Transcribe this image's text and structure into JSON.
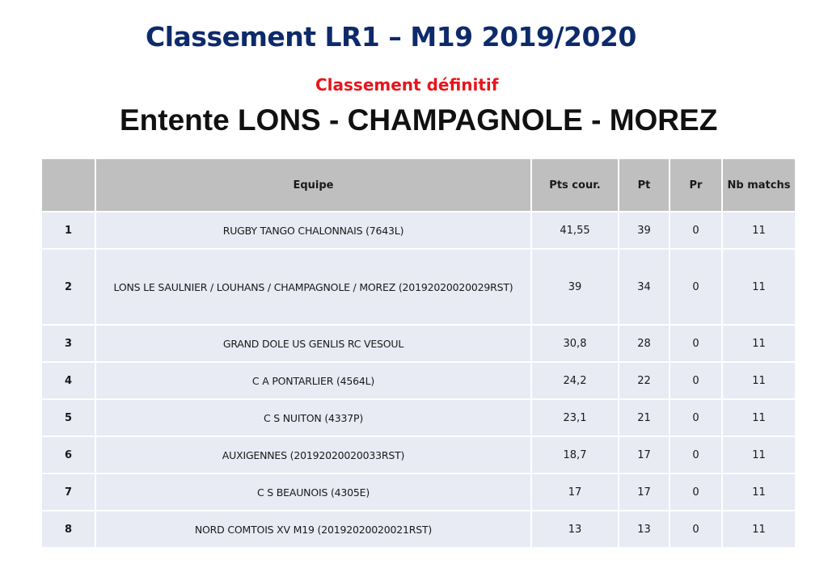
{
  "header": {
    "title": "Classement LR1 – M19 2019/2020",
    "subtitle_status": "Classement définitif",
    "subtitle_team": "Entente LONS - CHAMPAGNOLE - MOREZ"
  },
  "table": {
    "columns": [
      "",
      "Equipe",
      "Pts cour.",
      "Pt",
      "Pr",
      "Nb matchs"
    ],
    "rows": [
      {
        "rank": "1",
        "team": "RUGBY TANGO CHALONNAIS (7643L)",
        "pts_cour": "41,55",
        "pt": "39",
        "pr": "0",
        "nb_matchs": "11"
      },
      {
        "rank": "2",
        "team": "LONS LE SAULNIER / LOUHANS / CHAMPAGNOLE / MOREZ (20192020020029RST)",
        "pts_cour": "39",
        "pt": "34",
        "pr": "0",
        "nb_matchs": "11"
      },
      {
        "rank": "3",
        "team": "GRAND DOLE US GENLIS RC VESOUL",
        "pts_cour": "30,8",
        "pt": "28",
        "pr": "0",
        "nb_matchs": "11"
      },
      {
        "rank": "4",
        "team": "C A PONTARLIER (4564L)",
        "pts_cour": "24,2",
        "pt": "22",
        "pr": "0",
        "nb_matchs": "11"
      },
      {
        "rank": "5",
        "team": "C S NUITON (4337P)",
        "pts_cour": "23,1",
        "pt": "21",
        "pr": "0",
        "nb_matchs": "11"
      },
      {
        "rank": "6",
        "team": "AUXIGENNES (20192020020033RST)",
        "pts_cour": "18,7",
        "pt": "17",
        "pr": "0",
        "nb_matchs": "11"
      },
      {
        "rank": "7",
        "team": "C S BEAUNOIS (4305E)",
        "pts_cour": "17",
        "pt": "17",
        "pr": "0",
        "nb_matchs": "11"
      },
      {
        "rank": "8",
        "team": "NORD COMTOIS XV M19 (20192020020021RST)",
        "pts_cour": "13",
        "pt": "13",
        "pr": "0",
        "nb_matchs": "11"
      }
    ]
  }
}
